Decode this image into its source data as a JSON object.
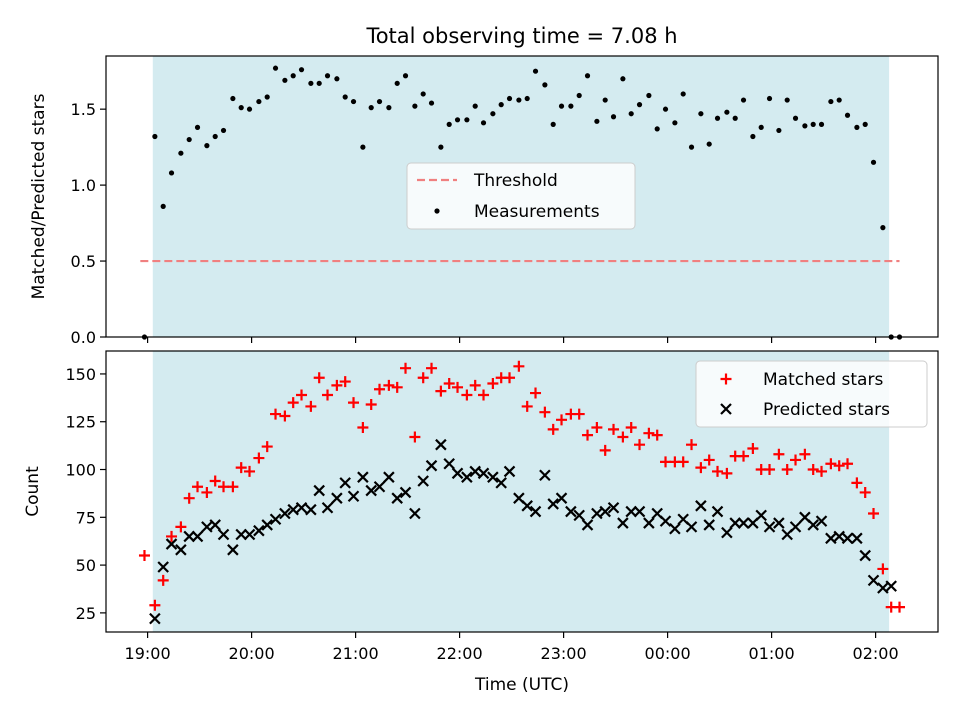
{
  "figure": {
    "title": "Total observing time = 7.08 h",
    "xlabel": "Time (UTC)"
  },
  "colors": {
    "shade": "#d4ebf0",
    "threshold": "#f08080",
    "matched": "#ff0000",
    "predicted": "#000000",
    "measurement": "#000000"
  },
  "chart_data": [
    {
      "type": "scatter",
      "panel": "top",
      "ylabel": "Matched/Predicted stars",
      "ylim": [
        0,
        1.85
      ],
      "yticks": [
        0.0,
        0.5,
        1.0,
        1.5
      ],
      "ytick_labels": [
        "0.0",
        "0.5",
        "1.0",
        "1.5"
      ],
      "xlim_hours": [
        18.6,
        26.6
      ],
      "observing_window_hours": [
        19.05,
        26.13
      ],
      "threshold": {
        "name": "Threshold",
        "value": 0.5,
        "x_range_hours": [
          18.93,
          26.23
        ]
      },
      "legend": [
        "Threshold",
        "Measurements"
      ],
      "legend_loc": "center",
      "series": [
        {
          "name": "Measurements",
          "x_hours": [
            18.97,
            19.07,
            19.15,
            19.23,
            19.32,
            19.4,
            19.48,
            19.57,
            19.65,
            19.73,
            19.82,
            19.9,
            19.98,
            20.07,
            20.15,
            20.23,
            20.32,
            20.4,
            20.48,
            20.57,
            20.65,
            20.73,
            20.82,
            20.9,
            20.98,
            21.07,
            21.15,
            21.23,
            21.32,
            21.4,
            21.48,
            21.57,
            21.65,
            21.73,
            21.82,
            21.9,
            21.98,
            22.07,
            22.15,
            22.23,
            22.32,
            22.4,
            22.48,
            22.57,
            22.65,
            22.73,
            22.82,
            22.9,
            22.98,
            23.07,
            23.15,
            23.23,
            23.32,
            23.4,
            23.48,
            23.57,
            23.65,
            23.73,
            23.82,
            23.9,
            23.98,
            24.07,
            24.15,
            24.23,
            24.32,
            24.4,
            24.48,
            24.57,
            24.65,
            24.73,
            24.82,
            24.9,
            24.98,
            25.07,
            25.15,
            25.23,
            25.32,
            25.4,
            25.48,
            25.57,
            25.65,
            25.73,
            25.82,
            25.9,
            25.98,
            26.07,
            26.15,
            26.23
          ],
          "y": [
            0.0,
            1.32,
            0.86,
            1.08,
            1.21,
            1.3,
            1.38,
            1.26,
            1.32,
            1.36,
            1.57,
            1.51,
            1.5,
            1.55,
            1.58,
            1.77,
            1.69,
            1.72,
            1.76,
            1.67,
            1.67,
            1.72,
            1.7,
            1.58,
            1.55,
            1.25,
            1.51,
            1.55,
            1.51,
            1.67,
            1.72,
            1.52,
            1.6,
            1.54,
            1.25,
            1.4,
            1.43,
            1.43,
            1.52,
            1.41,
            1.47,
            1.53,
            1.57,
            1.56,
            1.57,
            1.75,
            1.66,
            1.4,
            1.52,
            1.52,
            1.59,
            1.72,
            1.42,
            1.56,
            1.45,
            1.7,
            1.47,
            1.53,
            1.59,
            1.37,
            1.5,
            1.41,
            1.6,
            1.25,
            1.47,
            1.27,
            1.44,
            1.48,
            1.44,
            1.56,
            1.32,
            1.38,
            1.57,
            1.36,
            1.56,
            1.44,
            1.39,
            1.4,
            1.4,
            1.55,
            1.56,
            1.46,
            1.38,
            1.4,
            1.15,
            0.72,
            0.0,
            0.0
          ]
        }
      ]
    },
    {
      "type": "scatter",
      "panel": "bottom",
      "ylabel": "Count",
      "ylim": [
        15,
        162
      ],
      "yticks": [
        25,
        50,
        75,
        100,
        125,
        150
      ],
      "ytick_labels": [
        "25",
        "50",
        "75",
        "100",
        "125",
        "150"
      ],
      "xlim_hours": [
        18.6,
        26.6
      ],
      "xticks_hours": [
        19,
        20,
        21,
        22,
        23,
        24,
        25,
        26
      ],
      "xtick_labels": [
        "19:00",
        "20:00",
        "21:00",
        "22:00",
        "23:00",
        "00:00",
        "01:00",
        "02:00"
      ],
      "observing_window_hours": [
        19.05,
        26.13
      ],
      "legend": [
        "Matched stars",
        "Predicted stars"
      ],
      "legend_loc": "upper right",
      "series": [
        {
          "name": "Matched stars",
          "marker": "plus",
          "x_hours": [
            18.97,
            19.07,
            19.15,
            19.23,
            19.32,
            19.4,
            19.48,
            19.57,
            19.65,
            19.73,
            19.82,
            19.9,
            19.98,
            20.07,
            20.15,
            20.23,
            20.32,
            20.4,
            20.48,
            20.57,
            20.65,
            20.73,
            20.82,
            20.9,
            20.98,
            21.07,
            21.15,
            21.23,
            21.32,
            21.4,
            21.48,
            21.57,
            21.65,
            21.73,
            21.82,
            21.9,
            21.98,
            22.07,
            22.15,
            22.23,
            22.32,
            22.4,
            22.48,
            22.57,
            22.65,
            22.73,
            22.82,
            22.9,
            22.98,
            23.07,
            23.15,
            23.23,
            23.32,
            23.4,
            23.48,
            23.57,
            23.65,
            23.73,
            23.82,
            23.9,
            23.98,
            24.07,
            24.15,
            24.23,
            24.32,
            24.4,
            24.48,
            24.57,
            24.65,
            24.73,
            24.82,
            24.9,
            24.98,
            25.07,
            25.15,
            25.23,
            25.32,
            25.4,
            25.48,
            25.57,
            25.65,
            25.73,
            25.82,
            25.9,
            25.98,
            26.07,
            26.15,
            26.23
          ],
          "y": [
            55,
            29,
            42,
            65,
            70,
            85,
            91,
            88,
            94,
            91,
            91,
            101,
            99,
            106,
            112,
            129,
            128,
            135,
            139,
            133,
            148,
            139,
            144,
            146,
            135,
            122,
            134,
            142,
            144,
            143,
            153,
            117,
            148,
            153,
            141,
            145,
            143,
            139,
            144,
            139,
            145,
            148,
            148,
            154,
            133,
            140,
            130,
            121,
            126,
            129,
            129,
            118,
            122,
            110,
            121,
            117,
            122,
            113,
            119,
            118,
            104,
            104,
            104,
            113,
            101,
            105,
            99,
            98,
            107,
            107,
            111,
            100,
            100,
            108,
            100,
            105,
            108,
            100,
            99,
            103,
            102,
            103,
            93,
            88,
            77,
            48,
            28,
            28
          ]
        },
        {
          "name": "Predicted stars",
          "marker": "x",
          "x_hours": [
            19.07,
            19.15,
            19.23,
            19.32,
            19.4,
            19.48,
            19.57,
            19.65,
            19.73,
            19.82,
            19.9,
            19.98,
            20.07,
            20.15,
            20.23,
            20.32,
            20.4,
            20.48,
            20.57,
            20.65,
            20.73,
            20.82,
            20.9,
            20.98,
            21.07,
            21.15,
            21.23,
            21.32,
            21.4,
            21.48,
            21.57,
            21.65,
            21.73,
            21.82,
            21.9,
            21.98,
            22.07,
            22.15,
            22.23,
            22.32,
            22.4,
            22.48,
            22.57,
            22.65,
            22.73,
            22.82,
            22.9,
            22.98,
            23.07,
            23.15,
            23.23,
            23.32,
            23.4,
            23.48,
            23.57,
            23.65,
            23.73,
            23.82,
            23.9,
            23.98,
            24.07,
            24.15,
            24.23,
            24.32,
            24.4,
            24.48,
            24.57,
            24.65,
            24.73,
            24.82,
            24.9,
            24.98,
            25.07,
            25.15,
            25.23,
            25.32,
            25.4,
            25.48,
            25.57,
            25.65,
            25.73,
            25.82,
            25.9,
            25.98,
            26.07,
            26.15
          ],
          "y": [
            22,
            49,
            61,
            58,
            65,
            65,
            70,
            71,
            66,
            58,
            66,
            66,
            68,
            71,
            74,
            77,
            79,
            80,
            79,
            89,
            80,
            85,
            93,
            86,
            96,
            89,
            91,
            96,
            85,
            88,
            77,
            94,
            102,
            113,
            103,
            98,
            96,
            99,
            98,
            96,
            93,
            99,
            85,
            81,
            78,
            97,
            82,
            85,
            78,
            76,
            71,
            77,
            78,
            80,
            72,
            78,
            78,
            72,
            77,
            73,
            69,
            74,
            70,
            81,
            71,
            78,
            67,
            72,
            72,
            72,
            76,
            70,
            72,
            66,
            70,
            75,
            71,
            73,
            64,
            65,
            64,
            64,
            55,
            42,
            38,
            39
          ]
        }
      ]
    }
  ]
}
